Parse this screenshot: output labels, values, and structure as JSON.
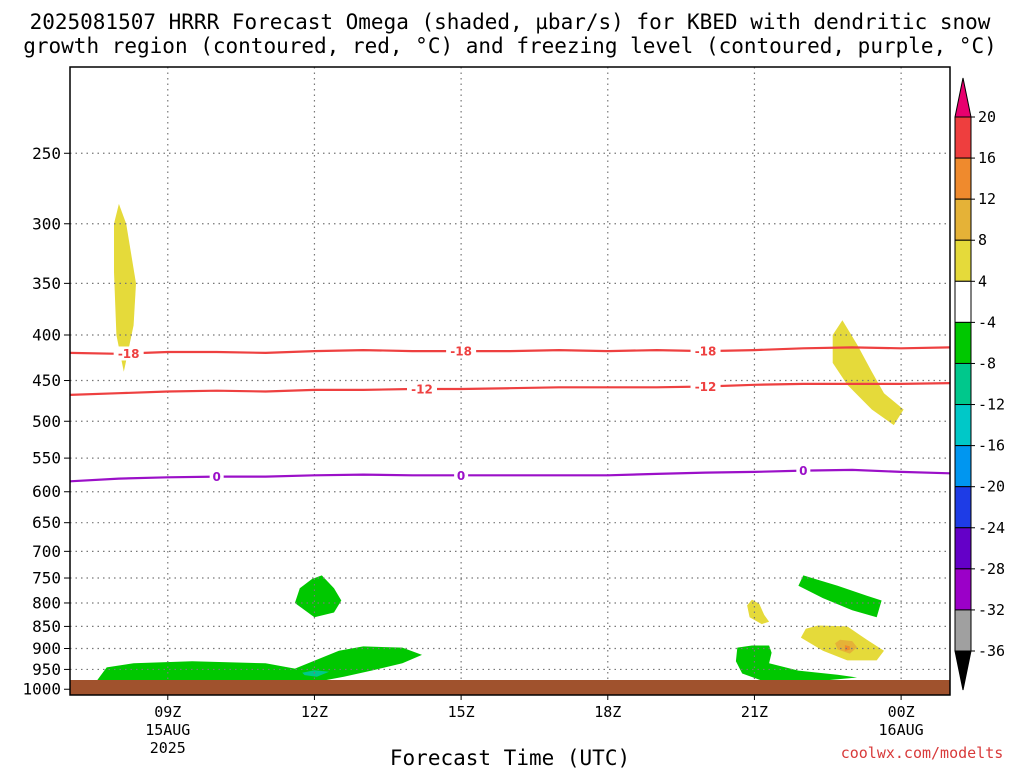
{
  "chart_data": {
    "type": "heatmap",
    "title_line1": "2025081507 HRRR Forecast Omega (shaded, µbar/s) for KBED with dendritic snow",
    "title_line2": "growth region (contoured, red, °C) and freezing level (contoured, purple, °C)",
    "xlabel": "Forecast Time (UTC)",
    "credit": "coolwx.com/modelts",
    "x_ticks": [
      {
        "hour": 9,
        "label": "09Z",
        "sub1": "15AUG",
        "sub2": "2025"
      },
      {
        "hour": 12,
        "label": "12Z",
        "sub1": "",
        "sub2": ""
      },
      {
        "hour": 15,
        "label": "15Z",
        "sub1": "",
        "sub2": ""
      },
      {
        "hour": 18,
        "label": "18Z",
        "sub1": "",
        "sub2": ""
      },
      {
        "hour": 21,
        "label": "21Z",
        "sub1": "",
        "sub2": ""
      },
      {
        "hour": 24,
        "label": "00Z",
        "sub1": "16AUG",
        "sub2": ""
      }
    ],
    "xlim_hours": [
      7,
      25
    ],
    "y_ticks": [
      250,
      300,
      350,
      400,
      450,
      500,
      550,
      600,
      650,
      700,
      750,
      800,
      850,
      900,
      950,
      1000
    ],
    "ylim_hpa": [
      200,
      1015
    ],
    "y_scale": "log-pressure",
    "grid": "dotted",
    "colorbar": {
      "levels": [
        20,
        16,
        12,
        8,
        4,
        -4,
        -8,
        -12,
        -16,
        -20,
        -24,
        -28,
        -32,
        -36
      ],
      "colors": [
        "#e8006e",
        "#ee3e3e",
        "#ef8a2d",
        "#e5b237",
        "#e5da3a",
        "#ffffff",
        "#00c800",
        "#00c88c",
        "#00c8c8",
        "#0096f0",
        "#1e3ce6",
        "#6400c8",
        "#9b00c8",
        "#a0a0a0",
        "#000000"
      ]
    },
    "omega_regions": [
      {
        "name": "upper-yellow",
        "value": 4,
        "points": [
          [
            8.0,
            285
          ],
          [
            8.15,
            300
          ],
          [
            8.35,
            350
          ],
          [
            8.3,
            390
          ],
          [
            8.1,
            440
          ],
          [
            7.95,
            400
          ],
          [
            7.9,
            340
          ],
          [
            7.9,
            300
          ]
        ]
      },
      {
        "name": "lower-green-east",
        "value": -4,
        "points": [
          [
            22.0,
            745
          ],
          [
            22.7,
            765
          ],
          [
            23.3,
            785
          ],
          [
            23.6,
            795
          ],
          [
            23.5,
            830
          ],
          [
            23.0,
            815
          ],
          [
            22.4,
            790
          ],
          [
            21.9,
            765
          ]
        ]
      },
      {
        "name": "upper-right-yellow",
        "value": 4,
        "points": [
          [
            22.8,
            385
          ],
          [
            23.1,
            410
          ],
          [
            23.4,
            440
          ],
          [
            23.65,
            465
          ],
          [
            24.05,
            485
          ],
          [
            23.85,
            505
          ],
          [
            23.4,
            485
          ],
          [
            22.9,
            455
          ],
          [
            22.6,
            430
          ],
          [
            22.6,
            400
          ]
        ]
      },
      {
        "name": "small-yellow-21z",
        "value": 4,
        "points": [
          [
            20.95,
            793
          ],
          [
            21.1,
            802
          ],
          [
            21.2,
            825
          ],
          [
            21.3,
            840
          ],
          [
            21.15,
            845
          ],
          [
            20.9,
            830
          ],
          [
            20.85,
            805
          ]
        ]
      },
      {
        "name": "low-yellow-22z",
        "value": 4,
        "points": [
          [
            22.3,
            848
          ],
          [
            22.9,
            850
          ],
          [
            23.3,
            880
          ],
          [
            23.65,
            905
          ],
          [
            23.5,
            928
          ],
          [
            22.9,
            928
          ],
          [
            22.4,
            905
          ],
          [
            21.95,
            875
          ],
          [
            22.05,
            855
          ]
        ]
      },
      {
        "name": "orange-core",
        "value": 8,
        "points": [
          [
            22.75,
            880
          ],
          [
            23.0,
            883
          ],
          [
            23.1,
            897
          ],
          [
            22.95,
            912
          ],
          [
            22.7,
            902
          ],
          [
            22.65,
            888
          ]
        ]
      },
      {
        "name": "orange-dark-core",
        "value": 12,
        "points": [
          [
            22.85,
            892
          ],
          [
            22.95,
            895
          ],
          [
            22.95,
            903
          ],
          [
            22.85,
            905
          ]
        ]
      },
      {
        "name": "mid-green-12z",
        "value": -4,
        "points": [
          [
            12.15,
            745
          ],
          [
            12.4,
            770
          ],
          [
            12.55,
            795
          ],
          [
            12.4,
            820
          ],
          [
            12.0,
            830
          ],
          [
            11.6,
            800
          ],
          [
            11.7,
            770
          ],
          [
            11.95,
            752
          ]
        ]
      },
      {
        "name": "low-green-west",
        "value": -4,
        "points": [
          [
            7.55,
            978
          ],
          [
            7.75,
            945
          ],
          [
            8.3,
            935
          ],
          [
            9.5,
            930
          ],
          [
            11.0,
            935
          ],
          [
            11.6,
            948
          ],
          [
            12.5,
            905
          ],
          [
            13.0,
            895
          ],
          [
            13.8,
            898
          ],
          [
            14.2,
            915
          ],
          [
            13.8,
            935
          ],
          [
            13.2,
            952
          ],
          [
            12.6,
            968
          ],
          [
            12.0,
            982
          ],
          [
            11.2,
            988
          ],
          [
            10.2,
            990
          ],
          [
            8.8,
            993
          ],
          [
            7.6,
            993
          ]
        ]
      },
      {
        "name": "teal-spot-12z",
        "value": -8,
        "points": [
          [
            11.75,
            958
          ],
          [
            12.0,
            952
          ],
          [
            12.3,
            956
          ],
          [
            12.05,
            968
          ],
          [
            11.8,
            964
          ]
        ]
      },
      {
        "name": "low-green-east",
        "value": -4,
        "points": [
          [
            20.65,
            898
          ],
          [
            20.95,
            893
          ],
          [
            21.3,
            893
          ],
          [
            21.35,
            910
          ],
          [
            21.3,
            935
          ],
          [
            21.9,
            953
          ],
          [
            22.7,
            963
          ],
          [
            23.1,
            970
          ],
          [
            22.4,
            978
          ],
          [
            21.8,
            982
          ],
          [
            21.2,
            980
          ],
          [
            20.75,
            960
          ],
          [
            20.62,
            930
          ]
        ]
      }
    ],
    "isotherm_m18": {
      "color": "#ee4040",
      "label": "-18",
      "hours": [
        7,
        8,
        9,
        10,
        11,
        12,
        13,
        14,
        15,
        16,
        17,
        18,
        19,
        20,
        21,
        22,
        23,
        24,
        25
      ],
      "hpa": [
        419,
        420,
        418,
        418,
        419,
        417,
        416,
        417,
        417,
        417,
        416,
        417,
        416,
        417,
        416,
        414,
        413,
        414,
        413
      ],
      "label_hours": [
        8.2,
        15.0,
        20.0
      ]
    },
    "isotherm_m12": {
      "color": "#ee4040",
      "label": "-12",
      "hours": [
        7,
        8,
        9,
        10,
        11,
        12,
        13,
        14,
        15,
        16,
        17,
        18,
        19,
        20,
        21,
        22,
        23,
        24,
        25
      ],
      "hpa": [
        467,
        465,
        463,
        462,
        463,
        461,
        461,
        460,
        460,
        459,
        458,
        458,
        458,
        457,
        455,
        454,
        454,
        454,
        453
      ],
      "label_hours": [
        14.2,
        20.0
      ]
    },
    "isotherm_0": {
      "color": "#9b10c8",
      "label": "0",
      "hours": [
        7,
        8,
        9,
        10,
        11,
        12,
        13,
        14,
        15,
        16,
        17,
        18,
        19,
        20,
        21,
        22,
        23,
        24,
        25
      ],
      "hpa": [
        584,
        580,
        578,
        577,
        577,
        575,
        574,
        575,
        575,
        575,
        575,
        575,
        573,
        571,
        570,
        568,
        567,
        570,
        572
      ],
      "label_hours": [
        10.0,
        15.0,
        22.0
      ]
    },
    "ground_color": "#a0522d"
  }
}
